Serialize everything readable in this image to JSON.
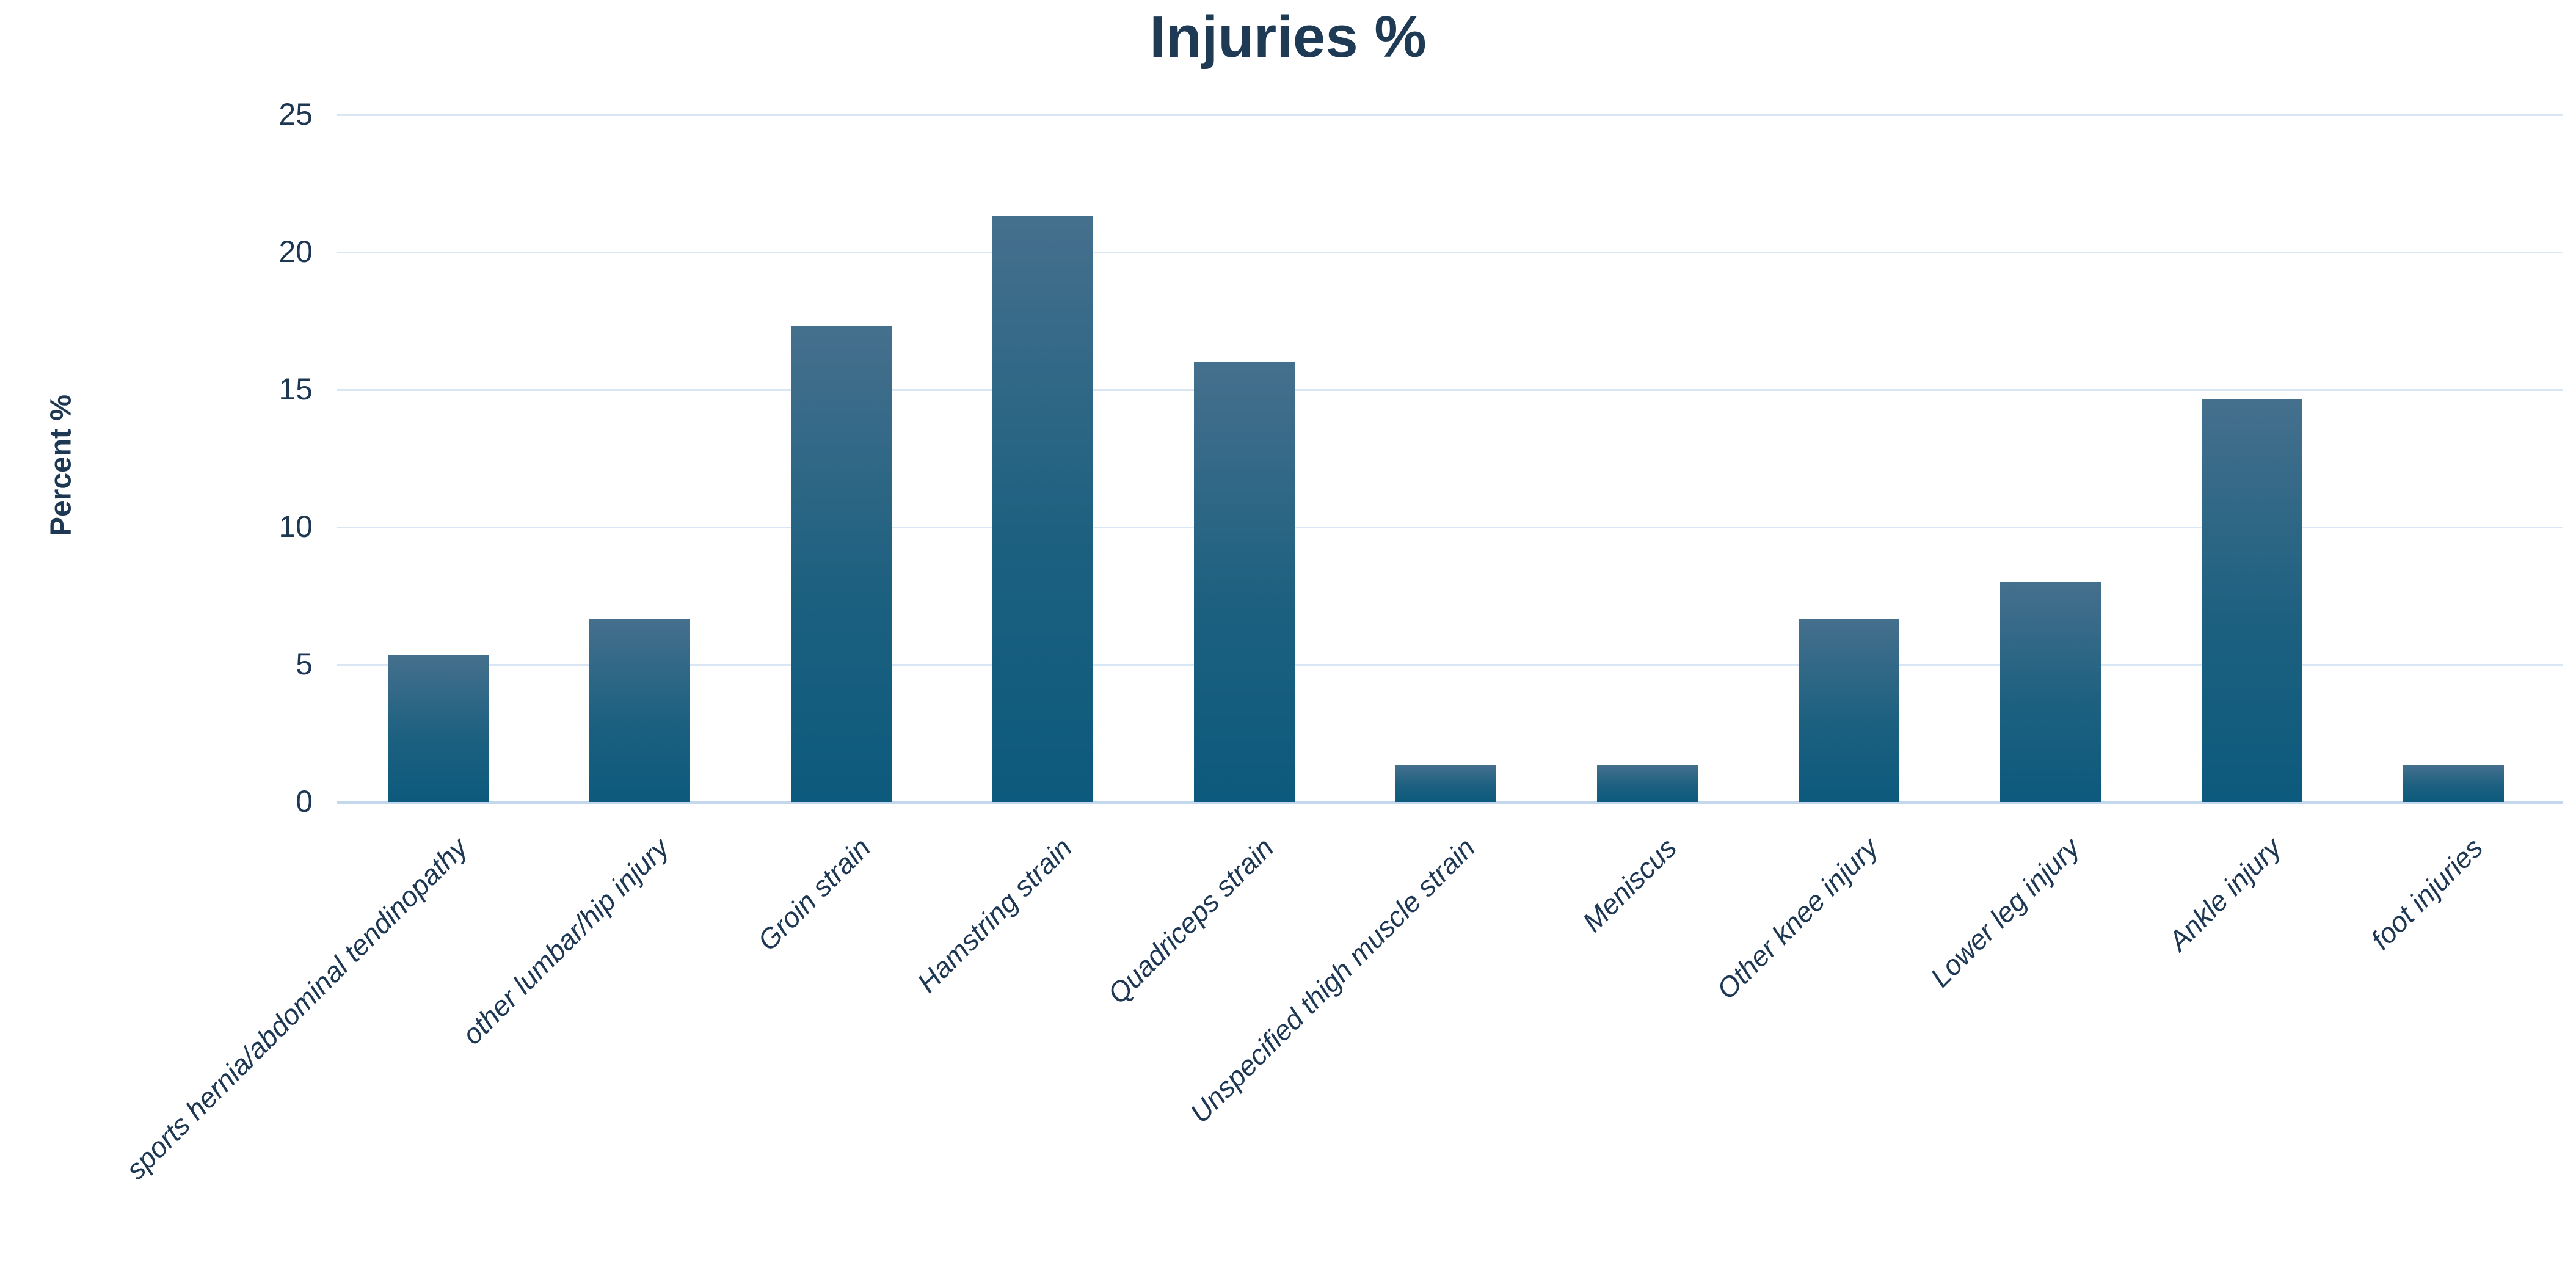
{
  "chart_data": {
    "type": "bar",
    "title": "Injuries %",
    "xlabel": "",
    "ylabel": "Percent %",
    "categories": [
      "sports hernia/abdominal tendinopathy",
      "other lumbar/hip injury",
      "Groin strain",
      "Hamstring strain",
      "Quadriceps strain",
      "Unspecified thigh muscle strain",
      "Meniscus",
      "Other knee injury",
      "Lower leg injury",
      "Ankle injury",
      "foot injuries"
    ],
    "values": [
      5.33,
      6.67,
      17.33,
      21.33,
      16.0,
      1.33,
      1.33,
      6.67,
      8.0,
      14.67,
      1.33
    ],
    "ylim": [
      0,
      25
    ],
    "yticks": [
      0,
      5,
      10,
      15,
      20,
      25
    ],
    "grid": "horizontal",
    "legend": "none",
    "category_label_style": "italic, rotated 45deg",
    "colors": {
      "bar_gradient_top": "#45708d",
      "bar_gradient_mid": "#1d6080",
      "bar_gradient_bottom": "#0c5a7d",
      "gridline": "#d9e6f4",
      "axis_line": "#c3d8ec",
      "text": "#1e3854",
      "title": "#1e3a55",
      "background": "#ffffff"
    }
  }
}
